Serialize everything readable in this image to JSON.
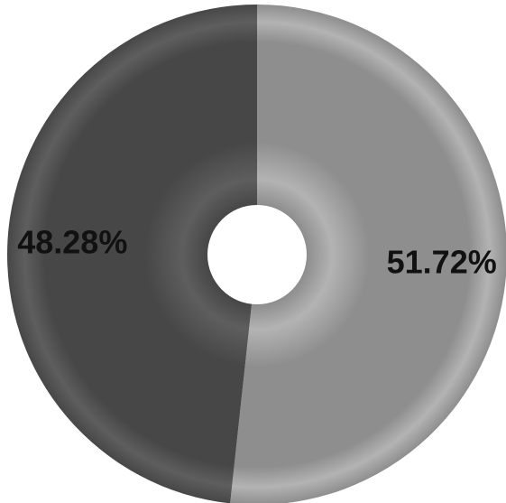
{
  "chart_data": {
    "type": "pie",
    "title": "",
    "hole": true,
    "slices": [
      {
        "label": "51.72%",
        "value": 51.72,
        "color": "#8e8e8e",
        "highlight": "#b3b3b3"
      },
      {
        "label": "48.28%",
        "value": 48.28,
        "color": "#474747",
        "highlight": "#5e5e5e"
      }
    ],
    "start_angle_deg": 0,
    "direction": "clockwise"
  }
}
